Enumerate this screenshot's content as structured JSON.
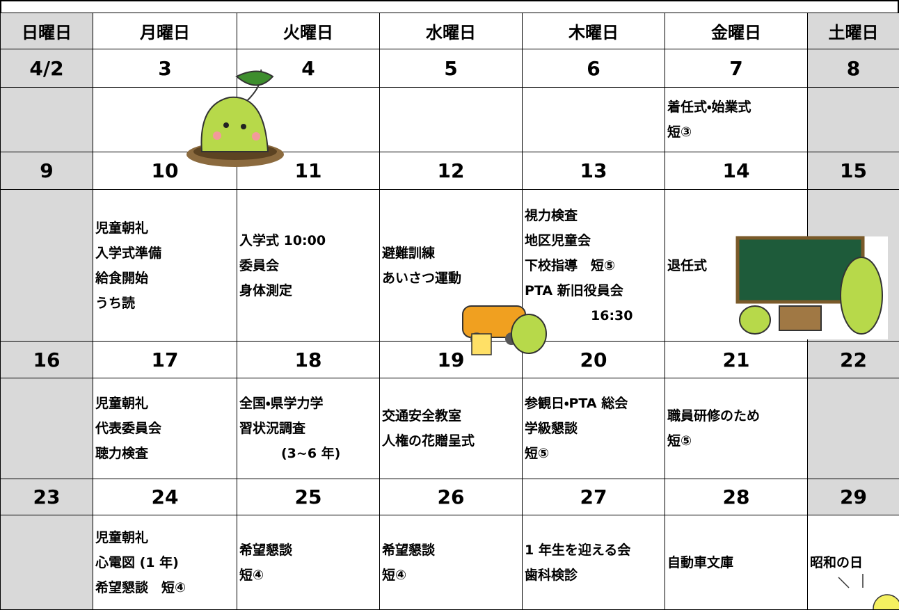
{
  "days": [
    "日曜日",
    "月曜日",
    "火曜日",
    "水曜日",
    "木曜日",
    "金曜日",
    "土曜日"
  ],
  "weeks": [
    {
      "dates": [
        "4/2",
        "3",
        "4",
        "5",
        "6",
        "7",
        "8"
      ],
      "events": [
        [],
        [],
        [],
        [],
        [],
        [
          "着任式・始業式",
          "短③"
        ],
        []
      ]
    },
    {
      "dates": [
        "9",
        "10",
        "11",
        "12",
        "13",
        "14",
        "15"
      ],
      "events": [
        [],
        [
          "児童朝礼",
          "入学式準備",
          "給食開始",
          "うち読"
        ],
        [
          "入学式 10:00",
          "委員会",
          "身体測定"
        ],
        [
          "避難訓練",
          "あいさつ運動"
        ],
        [
          "視力検査",
          "地区児童会",
          "下校指導　短⑤",
          "PTA 新旧役員会",
          "16:30"
        ],
        [
          "退任式"
        ],
        []
      ]
    },
    {
      "dates": [
        "16",
        "17",
        "18",
        "19",
        "20",
        "21",
        "22"
      ],
      "events": [
        [],
        [
          "児童朝礼",
          "代表委員会",
          "聴力検査"
        ],
        [
          "全国・県学力学",
          "習状況調査",
          "(3~6 年)"
        ],
        [
          "交通安全教室",
          "人権の花贈呈式"
        ],
        [
          "参観日・PTA 総会",
          "学級懇談",
          "短⑤"
        ],
        [
          "職員研修のため",
          "短⑤"
        ],
        []
      ]
    },
    {
      "dates": [
        "23",
        "24",
        "25",
        "26",
        "27",
        "28",
        "29"
      ],
      "events": [
        [],
        [
          "児童朝礼",
          "心電図 (1 年)",
          "希望懇談　短④"
        ],
        [
          "希望懇談",
          "短④"
        ],
        [
          "希望懇談",
          "短④"
        ],
        [
          "1 年生を迎える会",
          "歯科検診"
        ],
        [
          "自動車文庫"
        ],
        [
          "昭和の日"
        ]
      ]
    }
  ]
}
